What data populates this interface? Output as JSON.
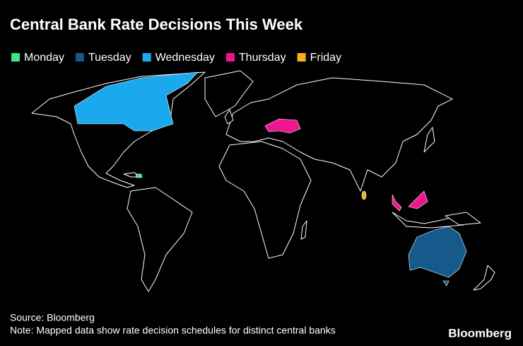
{
  "header": {
    "title": "Central Bank Rate Decisions This Week"
  },
  "legend": [
    {
      "label": "Monday",
      "color": "#3ee88a"
    },
    {
      "label": "Tuesday",
      "color": "#155a8a"
    },
    {
      "label": "Wednesday",
      "color": "#1aa9ef"
    },
    {
      "label": "Thursday",
      "color": "#ee158f"
    },
    {
      "label": "Friday",
      "color": "#f6b21c"
    }
  ],
  "footer": {
    "source": "Source: Bloomberg",
    "note": "Note: Mapped data show rate decision schedules for distinct central banks",
    "logo": "Bloomberg"
  }
}
